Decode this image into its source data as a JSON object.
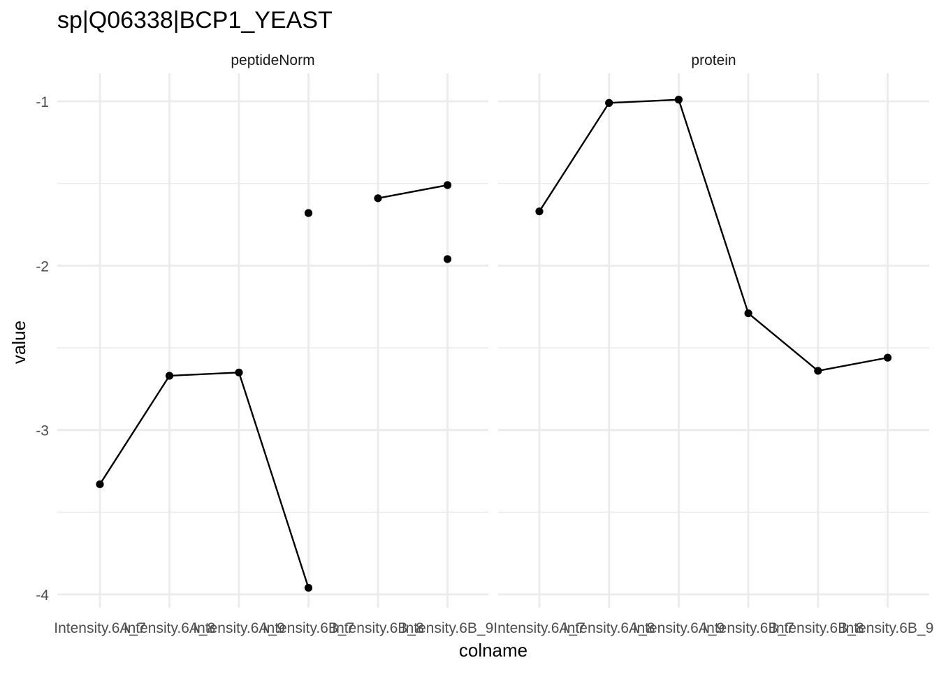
{
  "chart_data": {
    "type": "line",
    "title": "sp|Q06338|BCP1_YEAST",
    "xlabel": "colname",
    "ylabel": "value",
    "categories": [
      "Intensity.6A_7",
      "Intensity.6A_8",
      "Intensity.6A_9",
      "Intensity.6B_7",
      "Intensity.6B_8",
      "Intensity.6B_9"
    ],
    "y_ticks": [
      -4,
      -3,
      -2,
      -1
    ],
    "ylim": [
      -4.1,
      -0.75
    ],
    "grid": true,
    "legend": "none",
    "colors": {
      "line": "#000000",
      "point": "#000000",
      "grid": "#ebebeb",
      "text": "#000000",
      "tick_text": "#4d4d4d"
    },
    "panels": [
      {
        "name": "peptideNorm",
        "series": [
          {
            "points": [
              [
                0,
                -3.33
              ],
              [
                1,
                -2.67
              ],
              [
                2,
                -2.65
              ],
              [
                3,
                -3.96
              ]
            ],
            "line": true
          },
          {
            "points": [
              [
                3,
                -1.68
              ]
            ],
            "line": false
          },
          {
            "points": [
              [
                4,
                -1.59
              ],
              [
                5,
                -1.51
              ]
            ],
            "line": true
          },
          {
            "points": [
              [
                5,
                -1.96
              ]
            ],
            "line": false
          }
        ]
      },
      {
        "name": "protein",
        "series": [
          {
            "points": [
              [
                0,
                -1.67
              ],
              [
                1,
                -1.01
              ],
              [
                2,
                -0.99
              ],
              [
                3,
                -2.29
              ],
              [
                4,
                -2.64
              ],
              [
                5,
                -2.56
              ]
            ],
            "line": true
          }
        ]
      }
    ]
  }
}
